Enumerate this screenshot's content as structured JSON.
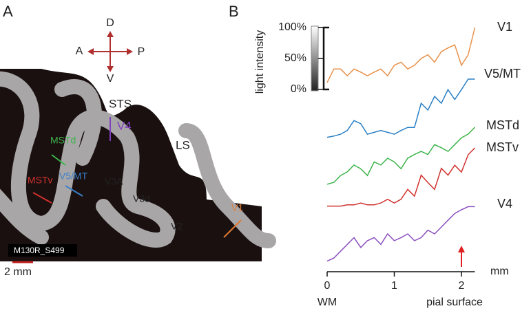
{
  "panel_a": {
    "label": "A",
    "compass": {
      "up": "D",
      "left": "A",
      "right": "P",
      "down": "V"
    },
    "area_labels": [
      "STS",
      "V4",
      "LS",
      "MSTd",
      "V5/MT",
      "MSTv",
      "V3A",
      "V3d",
      "V2",
      "V1"
    ],
    "section_id": "M130R_S499",
    "scale_label": "2 mm"
  },
  "chart_data": {
    "type": "line",
    "label": "B",
    "y_label": "light intensity",
    "scale_ticks": [
      {
        "value": 100,
        "label": "100%"
      },
      {
        "value": 50,
        "label": "50%"
      },
      {
        "value": 0,
        "label": "0%"
      }
    ],
    "x": [
      0,
      0.1,
      0.2,
      0.3,
      0.4,
      0.5,
      0.6,
      0.7,
      0.8,
      0.9,
      1.0,
      1.1,
      1.2,
      1.3,
      1.4,
      1.5,
      1.6,
      1.7,
      1.8,
      1.9,
      2.0,
      2.1,
      2.2
    ],
    "xlim": [
      0,
      2.2
    ],
    "xticks": [
      0,
      1,
      2
    ],
    "x_unit": "mm",
    "x_start_label": "WM",
    "x_end_label": "pial surface",
    "series": [
      {
        "name": "V1",
        "color": "#e8914a",
        "values": [
          11,
          33,
          33,
          22,
          33,
          28,
          22,
          28,
          33,
          22,
          39,
          44,
          33,
          39,
          50,
          56,
          44,
          61,
          67,
          72,
          39,
          56,
          100
        ]
      },
      {
        "name": "V5/MT",
        "color": "#2a7fc4",
        "values": [
          6,
          8,
          11,
          17,
          33,
          28,
          11,
          14,
          17,
          14,
          11,
          17,
          22,
          22,
          61,
          50,
          72,
          61,
          83,
          67,
          83,
          100,
          100
        ]
      },
      {
        "name": "MSTd",
        "color": "#3cb44a",
        "values": [
          8,
          11,
          22,
          28,
          39,
          33,
          22,
          44,
          39,
          50,
          44,
          33,
          50,
          56,
          61,
          56,
          72,
          67,
          61,
          72,
          83,
          89,
          100
        ]
      },
      {
        "name": "MSTv",
        "color": "#d0312d",
        "values": [
          6,
          6,
          6,
          8,
          8,
          11,
          8,
          8,
          11,
          17,
          11,
          17,
          33,
          22,
          56,
          44,
          33,
          67,
          56,
          72,
          61,
          89,
          100
        ]
      },
      {
        "name": "V4",
        "color": "#8b4fbf",
        "values": [
          6,
          11,
          22,
          33,
          44,
          28,
          39,
          44,
          33,
          50,
          39,
          44,
          50,
          39,
          44,
          56,
          50,
          61,
          72,
          83,
          89,
          94,
          94
        ]
      }
    ]
  }
}
